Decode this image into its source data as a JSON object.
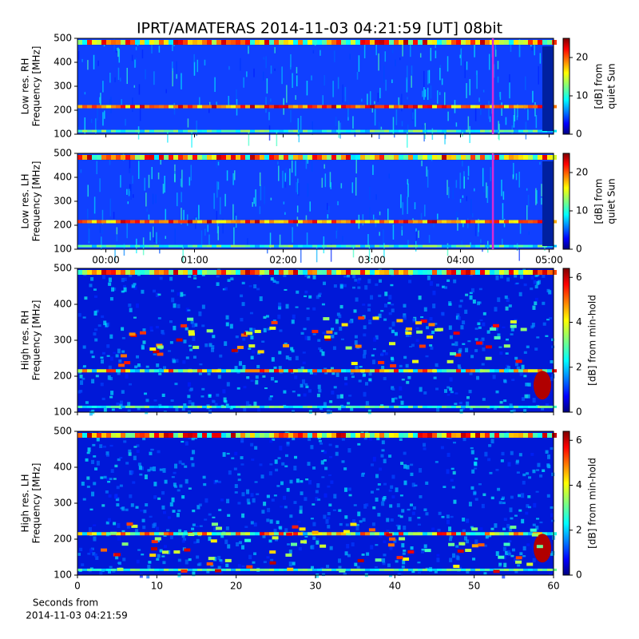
{
  "title": "IPRT/AMATERAS 2014-11-03 04:21:59 [UT]   08bit",
  "chart_data": [
    {
      "type": "heatmap",
      "ylabel": [
        "Low res. RH",
        "Frequency [MHz]"
      ],
      "xlim": [
        -0.32,
        5.05
      ],
      "xticks": [
        0,
        1,
        2,
        3,
        4,
        5
      ],
      "marker_x": 4.366,
      "marker_color": "#d62bd6",
      "ylim": [
        100,
        500
      ],
      "yticks": [
        100,
        200,
        300,
        400,
        500
      ],
      "colorbar": {
        "label": [
          "[dB] from",
          "quiet Sun"
        ],
        "lim": [
          0,
          25
        ],
        "ticks": [
          0,
          10,
          20
        ]
      }
    },
    {
      "type": "heatmap",
      "ylabel": [
        "Low res. LH",
        "Frequency [MHz]"
      ],
      "xlim": [
        -0.32,
        5.05
      ],
      "xticks": [
        {
          "value": 0,
          "label": "00:00"
        },
        {
          "value": 1,
          "label": "01:00"
        },
        {
          "value": 2,
          "label": "02:00"
        },
        {
          "value": 3,
          "label": "03:00"
        },
        {
          "value": 4,
          "label": "04:00"
        },
        {
          "value": 5,
          "label": "05:00"
        }
      ],
      "marker_x": 4.366,
      "marker_color": "#d62bd6",
      "ylim": [
        100,
        500
      ],
      "yticks": [
        100,
        200,
        300,
        400,
        500
      ],
      "colorbar": {
        "label": [
          "[dB] from",
          "quiet Sun"
        ],
        "lim": [
          0,
          25
        ],
        "ticks": [
          0,
          10,
          20
        ]
      }
    },
    {
      "type": "heatmap",
      "ylabel": [
        "High res. RH",
        "Frequency [MHz]"
      ],
      "xlim": [
        0,
        60
      ],
      "xticks": [
        0,
        10,
        20,
        30,
        40,
        50,
        60
      ],
      "ylim": [
        100,
        500
      ],
      "yticks": [
        100,
        200,
        300,
        400,
        500
      ],
      "colorbar": {
        "label": [
          "[dB] from min-hold"
        ],
        "lim": [
          0,
          6.4
        ],
        "ticks": [
          0,
          2,
          4,
          6
        ]
      }
    },
    {
      "type": "heatmap",
      "ylabel": [
        "High res. LH",
        "Frequency [MHz]"
      ],
      "xlabel": [
        "Seconds from",
        "2014-11-03 04:21:59"
      ],
      "xlim": [
        0,
        60
      ],
      "xticks": [
        0,
        10,
        20,
        30,
        40,
        50,
        60
      ],
      "ylim": [
        100,
        500
      ],
      "yticks": [
        100,
        200,
        300,
        400,
        500
      ],
      "colorbar": {
        "label": [
          "[dB] from min-hold"
        ],
        "lim": [
          0,
          6.4
        ],
        "ticks": [
          0,
          2,
          4,
          6
        ]
      }
    }
  ]
}
